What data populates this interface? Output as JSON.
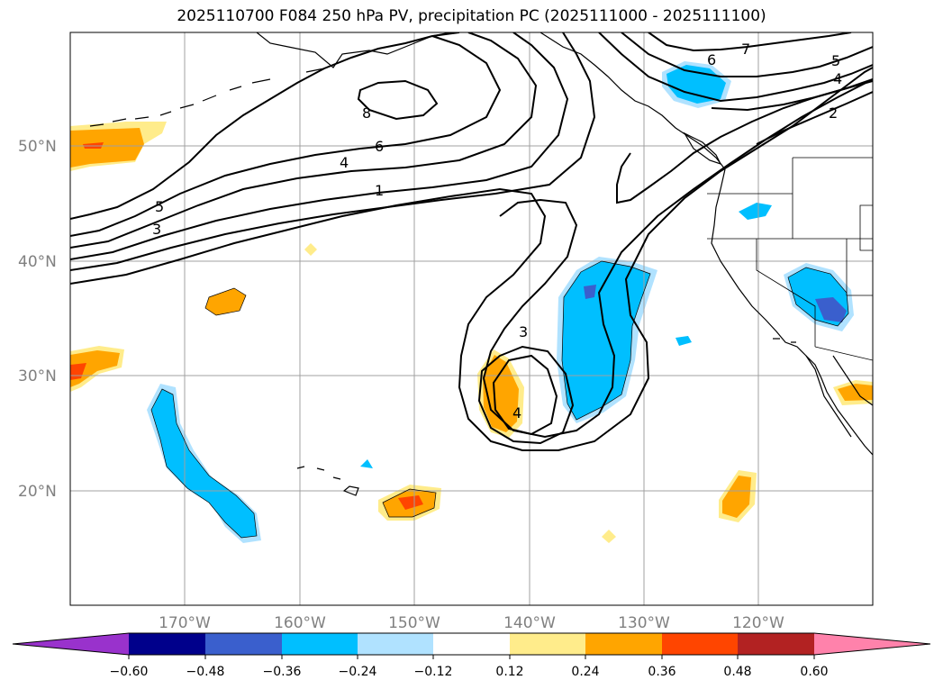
{
  "title": "2025110700 F084 250 hPa PV, precipitation PC (2025111000 - 2025111100)",
  "lat_labels": [
    "50°N",
    "40°N",
    "30°N",
    "20°N"
  ],
  "lon_labels": [
    "170°W",
    "160°W",
    "150°W",
    "140°W",
    "130°W",
    "120°W"
  ],
  "contour_labels": [
    "8",
    "6",
    "4",
    "1",
    "5",
    "3",
    "6",
    "7",
    "5",
    "4",
    "2",
    "3",
    "4"
  ],
  "colorbar": {
    "ticks": [
      "−0.60",
      "−0.48",
      "−0.36",
      "−0.24",
      "−0.12",
      "0.12",
      "0.24",
      "0.36",
      "0.48",
      "0.60"
    ],
    "colors": [
      "#9932cc",
      "#00008b",
      "#3a5fcd",
      "#00bfff",
      "#b0e2ff",
      "#ffffff",
      "#ffec8b",
      "#ffa500",
      "#ff4500",
      "#b22222",
      "#ff82ab"
    ]
  },
  "colors": {
    "neg_light": "#b0e2ff",
    "neg_mid": "#00bfff",
    "neg_strong": "#3a5fcd",
    "pos_light": "#ffec8b",
    "pos_mid": "#ffa500",
    "pos_strong": "#ff4500",
    "grid": "#a0a0a0"
  }
}
